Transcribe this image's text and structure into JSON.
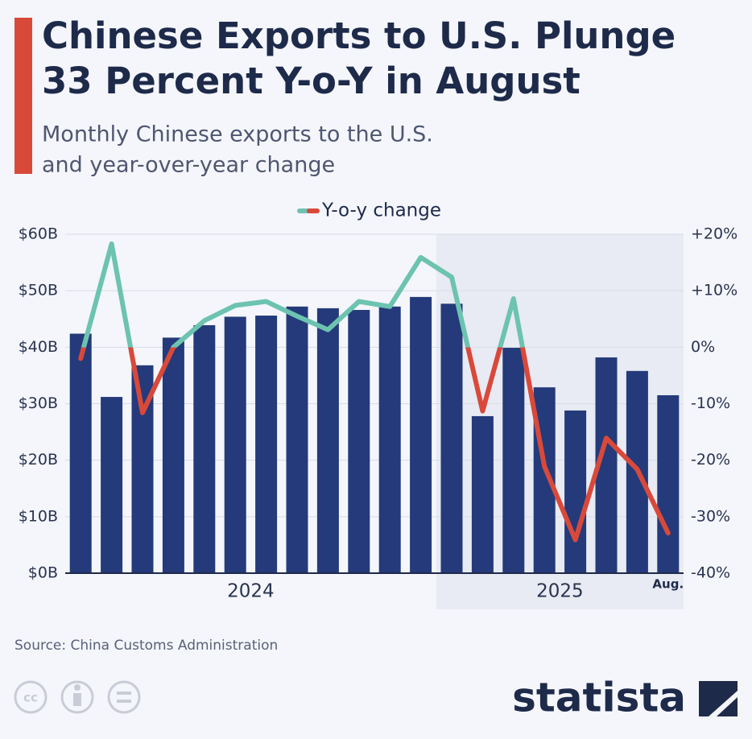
{
  "chart_data": {
    "type": "bar",
    "title": [
      "Chinese Exports to U.S. Plunge",
      "33 Percent Y-o-Y in August"
    ],
    "subtitle": [
      "Monthly Chinese exports to the U.S.",
      "and year-over-year change"
    ],
    "categories": [
      null,
      null,
      null,
      null,
      null,
      null,
      null,
      null,
      null,
      null,
      null,
      null,
      null,
      null,
      null,
      null,
      null,
      null,
      null,
      "Aug."
    ],
    "x_groups": [
      {
        "label": "2024",
        "start": 0,
        "end": 11
      },
      {
        "label": "2025",
        "start": 12,
        "end": 19
      }
    ],
    "shaded_group": 1,
    "series": [
      {
        "type": "bar",
        "color": "#243a7a",
        "values": [
          42.4,
          31.2,
          36.8,
          41.7,
          43.9,
          45.4,
          45.6,
          47.2,
          46.9,
          46.6,
          47.2,
          48.9,
          47.7,
          27.8,
          39.9,
          32.9,
          28.8,
          38.2,
          35.8,
          31.5
        ]
      },
      {
        "type": "line",
        "name": "Y-o-y change",
        "axis": "y2",
        "color": "#6cc3b0",
        "negative_color": "#d9493a",
        "values": [
          -2.0,
          18.3,
          -11.6,
          0,
          4.7,
          7.4,
          8.1,
          5.5,
          3.1,
          8.1,
          7.2,
          15.9,
          12.4,
          -11.3,
          8.6,
          -21.1,
          -34.1,
          -16.1,
          -21.6,
          -32.9
        ]
      }
    ],
    "ylim": [
      0,
      60
    ],
    "yticks": [
      {
        "value": 0,
        "label": "$0B"
      },
      {
        "value": 10,
        "label": "$10B"
      },
      {
        "value": 20,
        "label": "$20B"
      },
      {
        "value": 30,
        "label": "$30B"
      },
      {
        "value": 40,
        "label": "$40B"
      },
      {
        "value": 50,
        "label": "$50B"
      },
      {
        "value": 60,
        "label": "$60B"
      }
    ],
    "y2lim": [
      -40,
      20
    ],
    "y2ticks": [
      {
        "value": -40,
        "label": "-40%"
      },
      {
        "value": -30,
        "label": "-30%"
      },
      {
        "value": -20,
        "label": "-20%"
      },
      {
        "value": -10,
        "label": "-10%"
      },
      {
        "value": 0,
        "label": "0%"
      },
      {
        "value": 10,
        "label": "+10%"
      },
      {
        "value": 20,
        "label": "+20%"
      }
    ],
    "grid": true,
    "source": "Source: China Customs Administration",
    "brand": "statista"
  }
}
